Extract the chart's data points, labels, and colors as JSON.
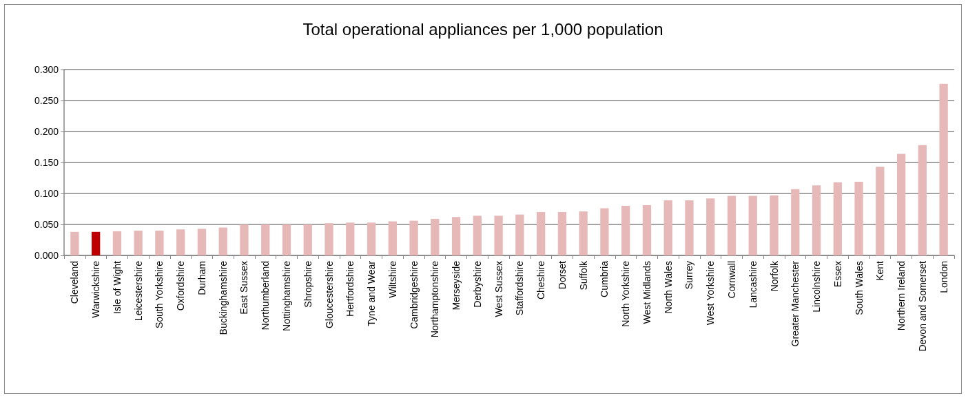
{
  "chart_data": {
    "type": "bar",
    "title": "Total operational appliances per 1,000 population",
    "categories": [
      "Cleveland",
      "Warwickshire",
      "Isle of Wight",
      "Leicestershire",
      "South Yorkshire",
      "Oxfordshire",
      "Durham",
      "Buckinghamshire",
      "East Sussex",
      "Northumberland",
      "Nottinghamshire",
      "Shropshire",
      "Gloucestershire",
      "Hertfordshire",
      "Tyne and Wear",
      "Wiltshire",
      "Cambridgeshire",
      "Northamptonshire",
      "Merseyside",
      "Derbyshire",
      "West Sussex",
      "Staffordshire",
      "Cheshire",
      "Dorset",
      "Suffolk",
      "Cumbria",
      "North Yorkshire",
      "West Midlands",
      "North Wales",
      "Surrey",
      "West Yorkshire",
      "Cornwall",
      "Lancashire",
      "Norfolk",
      "Greater Manchester",
      "Lincolnshire",
      "Essex",
      "South Wales",
      "Kent",
      "Northern Ireland",
      "Devon and Somerset",
      "London"
    ],
    "values": [
      0.038,
      0.038,
      0.039,
      0.04,
      0.04,
      0.042,
      0.043,
      0.045,
      0.05,
      0.05,
      0.05,
      0.05,
      0.052,
      0.053,
      0.053,
      0.055,
      0.056,
      0.059,
      0.062,
      0.064,
      0.064,
      0.066,
      0.07,
      0.07,
      0.071,
      0.076,
      0.08,
      0.081,
      0.089,
      0.089,
      0.092,
      0.096,
      0.096,
      0.097,
      0.107,
      0.113,
      0.118,
      0.119,
      0.143,
      0.164,
      0.178,
      0.277
    ],
    "colors": [
      "#e6b9b8",
      "#c00000",
      "#e6b9b8",
      "#e6b9b8",
      "#e6b9b8",
      "#e6b9b8",
      "#e6b9b8",
      "#e6b9b8",
      "#e6b9b8",
      "#e6b9b8",
      "#e6b9b8",
      "#e6b9b8",
      "#e6b9b8",
      "#e6b9b8",
      "#e6b9b8",
      "#e6b9b8",
      "#e6b9b8",
      "#e6b9b8",
      "#e6b9b8",
      "#e6b9b8",
      "#e6b9b8",
      "#e6b9b8",
      "#e6b9b8",
      "#e6b9b8",
      "#e6b9b8",
      "#e6b9b8",
      "#e6b9b8",
      "#e6b9b8",
      "#e6b9b8",
      "#e6b9b8",
      "#e6b9b8",
      "#e6b9b8",
      "#e6b9b8",
      "#e6b9b8",
      "#e6b9b8",
      "#e6b9b8",
      "#e6b9b8",
      "#e6b9b8",
      "#e6b9b8",
      "#e6b9b8",
      "#e6b9b8",
      "#e6b9b8"
    ],
    "ylim": [
      0,
      0.3
    ],
    "yticks": [
      {
        "value": 0,
        "label": "0.000"
      },
      {
        "value": 0.05,
        "label": "0.050"
      },
      {
        "value": 0.1,
        "label": "0.100"
      },
      {
        "value": 0.15,
        "label": "0.150"
      },
      {
        "value": 0.2,
        "label": "0.200"
      },
      {
        "value": 0.25,
        "label": "0.250"
      },
      {
        "value": 0.3,
        "label": "0.300"
      }
    ],
    "grid": "y"
  }
}
